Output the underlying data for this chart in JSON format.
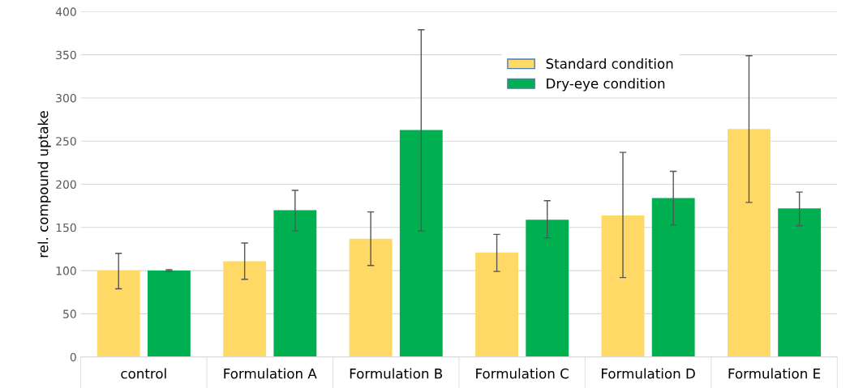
{
  "chart_data": {
    "type": "bar",
    "ylabel": "rel. compound uptake",
    "categories": [
      "control",
      "Formulation A",
      "Formulation B",
      "Formulation C",
      "Formulation D",
      "Formulation E"
    ],
    "series": [
      {
        "name": "Standard condition",
        "color": "#ffd966",
        "values": [
          100,
          111,
          137,
          121,
          164,
          264
        ],
        "errors": [
          [
            79,
            120
          ],
          [
            90,
            132
          ],
          [
            106,
            168
          ],
          [
            99,
            142
          ],
          [
            92,
            237
          ],
          [
            179,
            349
          ]
        ]
      },
      {
        "name": "Dry-eye condition",
        "color": "#00b050",
        "values": [
          100,
          170,
          263,
          159,
          184,
          172
        ],
        "errors": [
          [
            99,
            101
          ],
          [
            146,
            193
          ],
          [
            146,
            379
          ],
          [
            138,
            181
          ],
          [
            153,
            215
          ],
          [
            152,
            191
          ]
        ]
      }
    ],
    "ylim": [
      0,
      400
    ],
    "yticks": [
      0,
      50,
      100,
      150,
      200,
      250,
      300,
      350,
      400
    ],
    "grid": "y",
    "legend": "top right"
  }
}
